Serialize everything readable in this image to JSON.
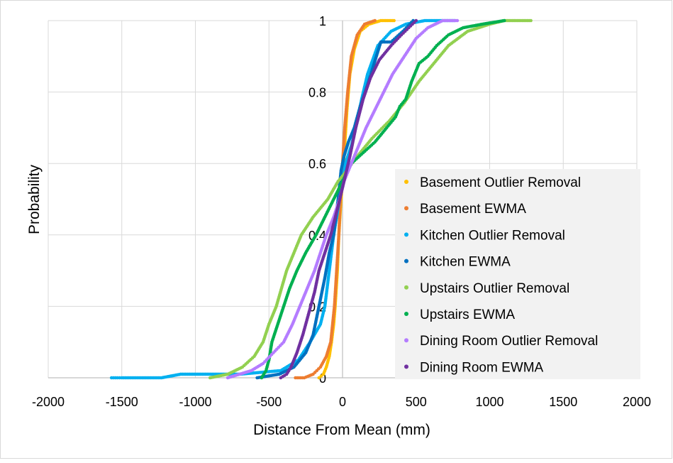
{
  "chart_data": {
    "type": "scatter",
    "xlabel": "Distance From Mean (mm)",
    "ylabel": "Probability",
    "xlim": [
      -2000,
      2000
    ],
    "ylim": [
      0,
      1
    ],
    "x_ticks": [
      -2000,
      -1500,
      -1000,
      -500,
      0,
      500,
      1000,
      1500,
      2000
    ],
    "x_tick_labels": [
      "-2000",
      "-1500",
      "-1000",
      "-500",
      "0",
      "500",
      "1000",
      "1500",
      "2000"
    ],
    "y_ticks": [
      0,
      0.2,
      0.4,
      0.6,
      0.8,
      1
    ],
    "y_tick_labels": [
      "0",
      "0.2",
      "0.4",
      "0.6",
      "0.8",
      "1"
    ],
    "grid": true,
    "legend_position": "right",
    "series": [
      {
        "name": "Basement Outlier Removal",
        "color": "#FFC000",
        "points": [
          [
            -160,
            0.0
          ],
          [
            -130,
            0.01
          ],
          [
            -110,
            0.03
          ],
          [
            -90,
            0.06
          ],
          [
            -75,
            0.1
          ],
          [
            -60,
            0.15
          ],
          [
            -50,
            0.2
          ],
          [
            -35,
            0.3
          ],
          [
            -25,
            0.4
          ],
          [
            -10,
            0.5
          ],
          [
            0,
            0.55
          ],
          [
            15,
            0.65
          ],
          [
            30,
            0.75
          ],
          [
            50,
            0.85
          ],
          [
            80,
            0.92
          ],
          [
            120,
            0.97
          ],
          [
            180,
            0.99
          ],
          [
            260,
            1.0
          ],
          [
            350,
            1.0
          ]
        ]
      },
      {
        "name": "Basement EWMA",
        "color": "#ED7D31",
        "points": [
          [
            -320,
            0.0
          ],
          [
            -260,
            0.0
          ],
          [
            -200,
            0.01
          ],
          [
            -150,
            0.03
          ],
          [
            -110,
            0.06
          ],
          [
            -80,
            0.1
          ],
          [
            -55,
            0.2
          ],
          [
            -40,
            0.3
          ],
          [
            -25,
            0.4
          ],
          [
            -15,
            0.5
          ],
          [
            0,
            0.6
          ],
          [
            15,
            0.7
          ],
          [
            35,
            0.8
          ],
          [
            60,
            0.9
          ],
          [
            100,
            0.96
          ],
          [
            150,
            0.99
          ],
          [
            220,
            1.0
          ]
        ]
      },
      {
        "name": "Kitchen Outlier Removal",
        "color": "#00B0F0",
        "points": [
          [
            -1570,
            0.0
          ],
          [
            -1530,
            0.0
          ],
          [
            -1500,
            0.0
          ],
          [
            -1440,
            0.0
          ],
          [
            -1360,
            0.0
          ],
          [
            -1230,
            0.0
          ],
          [
            -1100,
            0.01
          ],
          [
            -1030,
            0.01
          ],
          [
            -820,
            0.01
          ],
          [
            -700,
            0.01
          ],
          [
            -420,
            0.02
          ],
          [
            -300,
            0.05
          ],
          [
            -220,
            0.1
          ],
          [
            -150,
            0.15
          ],
          [
            -120,
            0.2
          ],
          [
            -90,
            0.3
          ],
          [
            -60,
            0.4
          ],
          [
            -20,
            0.5
          ],
          [
            0,
            0.55
          ],
          [
            20,
            0.6
          ],
          [
            60,
            0.65
          ],
          [
            90,
            0.7
          ],
          [
            130,
            0.78
          ],
          [
            170,
            0.85
          ],
          [
            240,
            0.93
          ],
          [
            330,
            0.97
          ],
          [
            430,
            0.99
          ],
          [
            560,
            1.0
          ],
          [
            680,
            1.0
          ],
          [
            760,
            1.0
          ]
        ]
      },
      {
        "name": "Kitchen EWMA",
        "color": "#0070C0",
        "points": [
          [
            -580,
            0.0
          ],
          [
            -430,
            0.01
          ],
          [
            -330,
            0.03
          ],
          [
            -250,
            0.07
          ],
          [
            -200,
            0.12
          ],
          [
            -160,
            0.2
          ],
          [
            -120,
            0.28
          ],
          [
            -90,
            0.35
          ],
          [
            -60,
            0.4
          ],
          [
            -30,
            0.5
          ],
          [
            -10,
            0.58
          ],
          [
            10,
            0.62
          ],
          [
            40,
            0.66
          ],
          [
            80,
            0.7
          ],
          [
            120,
            0.76
          ],
          [
            170,
            0.82
          ],
          [
            230,
            0.9
          ],
          [
            260,
            0.94
          ],
          [
            330,
            0.94
          ],
          [
            410,
            0.97
          ],
          [
            480,
            1.0
          ]
        ]
      },
      {
        "name": "Upstairs Outlier Removal",
        "color": "#92D050",
        "points": [
          [
            -900,
            0.0
          ],
          [
            -780,
            0.01
          ],
          [
            -680,
            0.03
          ],
          [
            -600,
            0.06
          ],
          [
            -540,
            0.1
          ],
          [
            -500,
            0.15
          ],
          [
            -450,
            0.2
          ],
          [
            -380,
            0.3
          ],
          [
            -280,
            0.4
          ],
          [
            -200,
            0.45
          ],
          [
            -100,
            0.5
          ],
          [
            -30,
            0.55
          ],
          [
            10,
            0.57
          ],
          [
            100,
            0.62
          ],
          [
            200,
            0.67
          ],
          [
            320,
            0.72
          ],
          [
            420,
            0.77
          ],
          [
            520,
            0.83
          ],
          [
            620,
            0.88
          ],
          [
            720,
            0.93
          ],
          [
            850,
            0.97
          ],
          [
            1000,
            0.99
          ],
          [
            1100,
            1.0
          ],
          [
            1200,
            1.0
          ],
          [
            1280,
            1.0
          ]
        ]
      },
      {
        "name": "Upstairs EWMA",
        "color": "#00B050",
        "points": [
          [
            -550,
            0.0
          ],
          [
            -520,
            0.02
          ],
          [
            -500,
            0.05
          ],
          [
            -480,
            0.1
          ],
          [
            -440,
            0.15
          ],
          [
            -400,
            0.2
          ],
          [
            -360,
            0.25
          ],
          [
            -310,
            0.3
          ],
          [
            -250,
            0.35
          ],
          [
            -180,
            0.4
          ],
          [
            -120,
            0.45
          ],
          [
            -60,
            0.5
          ],
          [
            0,
            0.55
          ],
          [
            60,
            0.6
          ],
          [
            140,
            0.63
          ],
          [
            220,
            0.66
          ],
          [
            300,
            0.7
          ],
          [
            360,
            0.73
          ],
          [
            390,
            0.76
          ],
          [
            430,
            0.78
          ],
          [
            470,
            0.83
          ],
          [
            520,
            0.88
          ],
          [
            580,
            0.9
          ],
          [
            640,
            0.93
          ],
          [
            720,
            0.96
          ],
          [
            820,
            0.98
          ],
          [
            950,
            0.99
          ],
          [
            1100,
            1.0
          ]
        ]
      },
      {
        "name": "Dining Room Outlier Removal",
        "color": "#B47CFF",
        "points": [
          [
            -780,
            0.0
          ],
          [
            -700,
            0.01
          ],
          [
            -620,
            0.02
          ],
          [
            -540,
            0.04
          ],
          [
            -470,
            0.07
          ],
          [
            -400,
            0.1
          ],
          [
            -340,
            0.15
          ],
          [
            -290,
            0.2
          ],
          [
            -240,
            0.25
          ],
          [
            -190,
            0.3
          ],
          [
            -150,
            0.35
          ],
          [
            -110,
            0.4
          ],
          [
            -60,
            0.45
          ],
          [
            -20,
            0.5
          ],
          [
            10,
            0.55
          ],
          [
            60,
            0.6
          ],
          [
            110,
            0.65
          ],
          [
            160,
            0.7
          ],
          [
            220,
            0.75
          ],
          [
            280,
            0.8
          ],
          [
            340,
            0.85
          ],
          [
            420,
            0.9
          ],
          [
            500,
            0.95
          ],
          [
            580,
            0.98
          ],
          [
            680,
            1.0
          ],
          [
            780,
            1.0
          ]
        ]
      },
      {
        "name": "Dining Room EWMA",
        "color": "#7030A0",
        "points": [
          [
            -420,
            0.0
          ],
          [
            -380,
            0.01
          ],
          [
            -350,
            0.03
          ],
          [
            -310,
            0.07
          ],
          [
            -270,
            0.12
          ],
          [
            -230,
            0.18
          ],
          [
            -190,
            0.24
          ],
          [
            -160,
            0.3
          ],
          [
            -120,
            0.35
          ],
          [
            -80,
            0.4
          ],
          [
            -30,
            0.48
          ],
          [
            10,
            0.55
          ],
          [
            50,
            0.62
          ],
          [
            90,
            0.7
          ],
          [
            140,
            0.78
          ],
          [
            190,
            0.84
          ],
          [
            250,
            0.89
          ],
          [
            330,
            0.93
          ],
          [
            400,
            0.96
          ],
          [
            450,
            0.98
          ],
          [
            500,
            1.0
          ]
        ]
      }
    ]
  }
}
